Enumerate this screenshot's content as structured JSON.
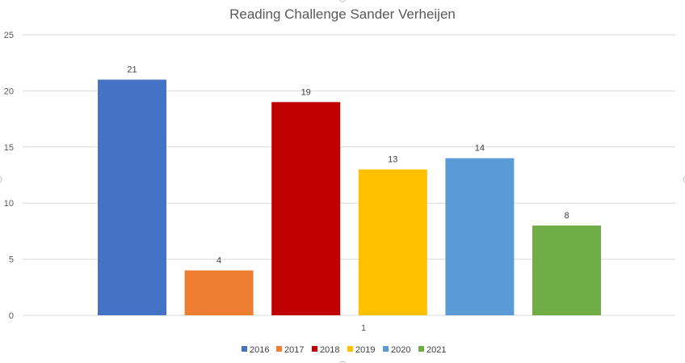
{
  "chart_data": {
    "type": "bar",
    "title": "Reading Challenge Sander Verheijen",
    "categories": [
      "1"
    ],
    "series": [
      {
        "name": "2016",
        "values": [
          21
        ],
        "color": "#4472c4"
      },
      {
        "name": "2017",
        "values": [
          4
        ],
        "color": "#ed7d31"
      },
      {
        "name": "2018",
        "values": [
          19
        ],
        "color": "#c00000"
      },
      {
        "name": "2019",
        "values": [
          13
        ],
        "color": "#ffc000"
      },
      {
        "name": "2020",
        "values": [
          14
        ],
        "color": "#5b9bd5"
      },
      {
        "name": "2021",
        "values": [
          8
        ],
        "color": "#70ad47"
      }
    ],
    "ylim": [
      0,
      25
    ],
    "yticks": [
      0,
      5,
      10,
      15,
      20,
      25
    ],
    "grid": true,
    "legend": "bottom",
    "data_labels": true
  }
}
